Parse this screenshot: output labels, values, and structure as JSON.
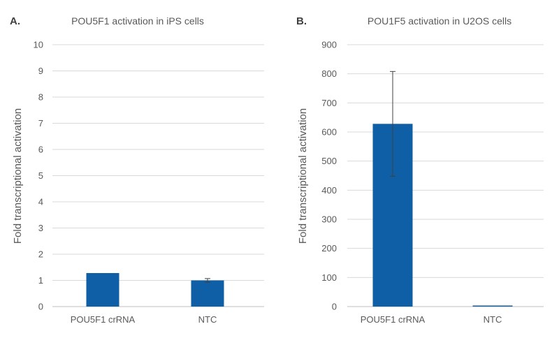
{
  "chart_data": [
    {
      "type": "bar",
      "panel_label": "A.",
      "title": "POU5F1 activation in iPS cells",
      "ylabel": "Fold transcriptional activation",
      "xlabel": "",
      "categories": [
        "POU5F1 crRNA",
        "NTC"
      ],
      "values": [
        1.28,
        1.0
      ],
      "error": [
        0,
        0.07
      ],
      "ylim": [
        0,
        10
      ],
      "yticks": [
        "0",
        "1",
        "2",
        "3",
        "4",
        "5",
        "6",
        "7",
        "8",
        "9",
        "10"
      ],
      "grid": true,
      "color": "#0f5fa6"
    },
    {
      "type": "bar",
      "panel_label": "B.",
      "title": "POU1F5 activation in U2OS cells",
      "ylabel": "Fold transcriptional activation",
      "xlabel": "",
      "categories": [
        "POU5F1 crRNA",
        "NTC"
      ],
      "values": [
        628,
        1
      ],
      "error": [
        180,
        0
      ],
      "ylim": [
        0,
        900
      ],
      "yticks": [
        "0",
        "100",
        "200",
        "300",
        "400",
        "500",
        "600",
        "700",
        "800",
        "900"
      ],
      "grid": true,
      "color": "#0f5fa6"
    }
  ]
}
